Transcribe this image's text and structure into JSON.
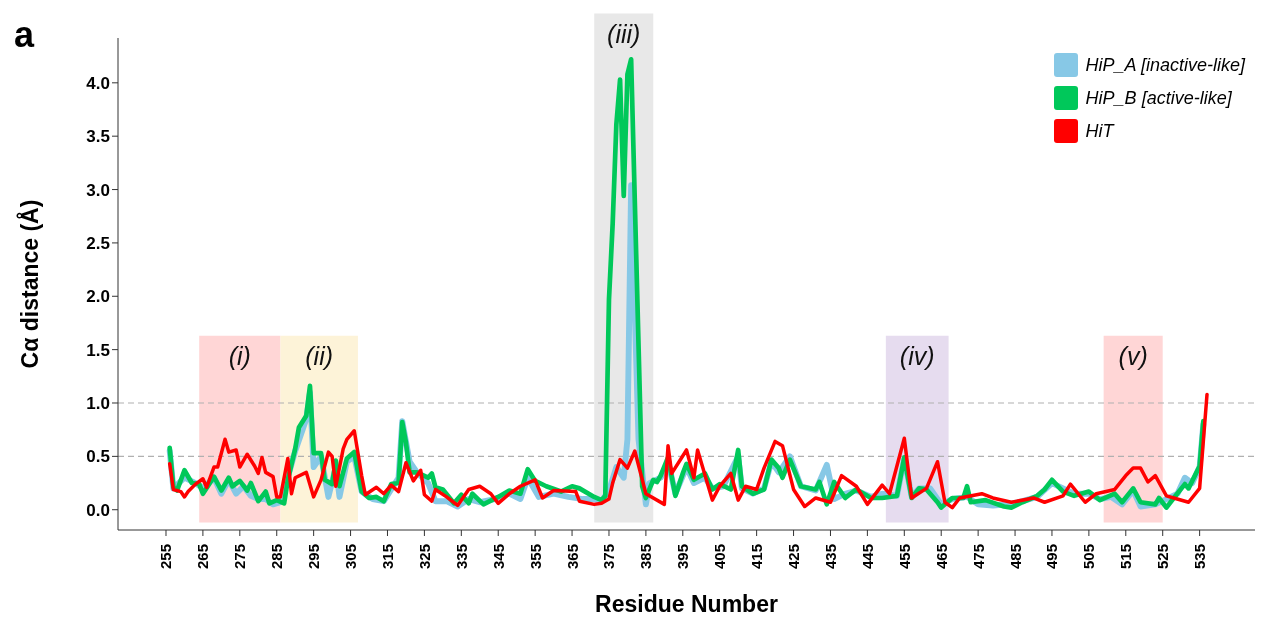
{
  "chart_data": {
    "type": "line",
    "xlabel": "Residue Number",
    "ylabel": "Cα distance (Å)",
    "annotations": [
      "a"
    ],
    "xlim": [
      242,
      550
    ],
    "xticks": [
      255,
      265,
      275,
      285,
      295,
      305,
      315,
      325,
      335,
      345,
      355,
      365,
      375,
      385,
      395,
      405,
      415,
      425,
      435,
      445,
      455,
      465,
      475,
      485,
      495,
      505,
      515,
      525,
      535
    ],
    "ylim": [
      -0.19,
      4.42
    ],
    "yticks": [
      {
        "value": 0,
        "label": "0.0"
      },
      {
        "value": 0.5,
        "label": "0.5"
      },
      {
        "value": 1,
        "label": "1.0"
      },
      {
        "value": 1.5,
        "label": "1.5"
      },
      {
        "value": 2,
        "label": "2.0"
      },
      {
        "value": 2.5,
        "label": "2.5"
      },
      {
        "value": 3,
        "label": "3.0"
      },
      {
        "value": 3.5,
        "label": "3.5"
      },
      {
        "value": 4,
        "label": "4.0"
      }
    ],
    "grid": false,
    "legend": "top right",
    "marker": "none",
    "line_style": "solid",
    "ref_lines": [
      {
        "axis": "y",
        "value": 0.5,
        "color": "#b0b0b0",
        "line_style": "dashed"
      },
      {
        "axis": "y",
        "value": 1,
        "color": "#b0b0b0",
        "line_style": "dashed"
      }
    ],
    "bands": [
      {
        "axis": "x",
        "from": 264,
        "to": 286,
        "label": "(i)",
        "color": "#ffd6d6"
      },
      {
        "axis": "x",
        "from": 286,
        "to": 307,
        "label": "(ii)",
        "color": "#fdf3d8"
      },
      {
        "axis": "x",
        "from": 371,
        "to": 387,
        "label": "(iii)",
        "color": "#e8e8e8"
      },
      {
        "axis": "x",
        "from": 450,
        "to": 467,
        "label": "(iv)",
        "color": "#e6dcef"
      },
      {
        "axis": "x",
        "from": 509,
        "to": 525,
        "label": "(v)",
        "color": "#ffd6d6"
      }
    ],
    "series": [
      {
        "name": "HiP_A [inactive-like]",
        "color": "#87c8e6",
        "x": [
          256,
          257,
          260,
          263,
          265,
          268,
          270,
          272,
          274,
          276,
          278,
          280,
          282,
          284,
          286,
          288,
          290,
          292,
          293,
          294,
          295,
          297,
          299,
          301,
          302,
          304,
          306,
          308,
          311,
          314,
          318,
          319,
          321,
          323,
          326,
          328,
          331,
          334,
          337,
          340,
          344,
          348,
          351,
          353,
          356,
          360,
          364,
          368,
          371,
          373,
          375,
          377,
          379,
          380,
          381,
          383,
          385,
          386,
          389,
          391,
          393,
          396,
          398,
          401,
          403,
          406,
          410,
          411,
          414,
          417,
          419,
          421,
          424,
          427,
          431,
          434,
          436,
          439,
          442,
          446,
          449,
          453,
          455,
          457,
          459,
          462,
          465,
          468,
          472,
          475,
          479,
          483,
          487,
          491,
          495,
          498,
          501,
          505,
          508,
          511,
          514,
          517,
          519,
          523,
          526,
          529,
          531,
          533,
          535,
          536
        ],
        "values": [
          0.55,
          0.2,
          0.3,
          0.25,
          0.2,
          0.3,
          0.15,
          0.28,
          0.15,
          0.22,
          0.13,
          0.1,
          0.1,
          0.05,
          0.07,
          0.3,
          0.55,
          0.75,
          0.85,
          1.1,
          0.4,
          0.5,
          0.12,
          0.4,
          0.12,
          0.45,
          0.5,
          0.17,
          0.1,
          0.08,
          0.3,
          0.83,
          0.45,
          0.35,
          0.25,
          0.08,
          0.08,
          0.03,
          0.1,
          0.07,
          0.1,
          0.15,
          0.1,
          0.3,
          0.12,
          0.15,
          0.12,
          0.1,
          0.1,
          0.08,
          0.18,
          0.4,
          0.3,
          0.66,
          3.04,
          0.66,
          0.05,
          0.25,
          0.3,
          0.45,
          0.15,
          0.4,
          0.25,
          0.3,
          0.2,
          0.22,
          0.5,
          0.2,
          0.15,
          0.2,
          0.45,
          0.35,
          0.5,
          0.22,
          0.18,
          0.42,
          0.1,
          0.15,
          0.18,
          0.12,
          0.15,
          0.13,
          0.48,
          0.12,
          0.2,
          0.2,
          0.05,
          0.1,
          0.12,
          0.05,
          0.04,
          0.05,
          0.08,
          0.12,
          0.25,
          0.2,
          0.15,
          0.15,
          0.1,
          0.12,
          0.05,
          0.18,
          0.03,
          0.05,
          0.1,
          0.15,
          0.3,
          0.25,
          0.4,
          0.8
        ]
      },
      {
        "name": "HiP_B [active-like]",
        "color": "#00c85a",
        "x": [
          256,
          257,
          258,
          260,
          262,
          264,
          265,
          268,
          270,
          272,
          273,
          275,
          277,
          278,
          280,
          282,
          283,
          285,
          287,
          288,
          290,
          291,
          293,
          294,
          295,
          297,
          298,
          300,
          301,
          302,
          304,
          306,
          308,
          310,
          312,
          314,
          316,
          318,
          319,
          320,
          321,
          323,
          326,
          327,
          328,
          330,
          333,
          335,
          337,
          338,
          341,
          345,
          348,
          351,
          353,
          355,
          358,
          362,
          365,
          367,
          371,
          373,
          374,
          375,
          376,
          377,
          378,
          379,
          380,
          381,
          384,
          385,
          387,
          388,
          389,
          391,
          393,
          395,
          396,
          398,
          401,
          403,
          405,
          408,
          410,
          411,
          414,
          417,
          419,
          421,
          422,
          424,
          427,
          431,
          432,
          434,
          436,
          439,
          442,
          446,
          449,
          453,
          455,
          457,
          459,
          461,
          464,
          465,
          468,
          471,
          472,
          473,
          477,
          482,
          484,
          487,
          491,
          493,
          495,
          498,
          501,
          505,
          508,
          512,
          514,
          517,
          519,
          523,
          524,
          526,
          528,
          531,
          532,
          535,
          536
        ],
        "values": [
          0.58,
          0.21,
          0.18,
          0.37,
          0.25,
          0.24,
          0.15,
          0.31,
          0.18,
          0.3,
          0.22,
          0.27,
          0.18,
          0.25,
          0.08,
          0.17,
          0.06,
          0.09,
          0.06,
          0.28,
          0.57,
          0.77,
          0.88,
          1.16,
          0.53,
          0.53,
          0.28,
          0.24,
          0.46,
          0.22,
          0.48,
          0.54,
          0.17,
          0.11,
          0.12,
          0.08,
          0.24,
          0.25,
          0.82,
          0.63,
          0.35,
          0.35,
          0.3,
          0.34,
          0.21,
          0.19,
          0.06,
          0.14,
          0.06,
          0.15,
          0.05,
          0.12,
          0.18,
          0.15,
          0.38,
          0.27,
          0.22,
          0.17,
          0.22,
          0.2,
          0.12,
          0.09,
          0.13,
          1.97,
          2.68,
          3.61,
          4.03,
          2.94,
          4.08,
          4.22,
          0.22,
          0.11,
          0.28,
          0.26,
          0.32,
          0.49,
          0.13,
          0.34,
          0.43,
          0.28,
          0.34,
          0.19,
          0.24,
          0.19,
          0.56,
          0.22,
          0.15,
          0.19,
          0.47,
          0.39,
          0.3,
          0.47,
          0.22,
          0.19,
          0.26,
          0.05,
          0.26,
          0.11,
          0.19,
          0.11,
          0.11,
          0.13,
          0.49,
          0.11,
          0.2,
          0.19,
          0.07,
          0.02,
          0.11,
          0.11,
          0.22,
          0.07,
          0.09,
          0.03,
          0.02,
          0.07,
          0.13,
          0.19,
          0.28,
          0.17,
          0.13,
          0.17,
          0.09,
          0.15,
          0.07,
          0.2,
          0.07,
          0.05,
          0.11,
          0.02,
          0.11,
          0.24,
          0.2,
          0.41,
          0.83
        ]
      },
      {
        "name": "HiT",
        "color": "#ff0000",
        "x": [
          256,
          257,
          259,
          260,
          261,
          263,
          265,
          266,
          268,
          269,
          271,
          272,
          274,
          275,
          277,
          279,
          280,
          281,
          282,
          284,
          285,
          286,
          288,
          289,
          290,
          293,
          295,
          297,
          299,
          300,
          301,
          303,
          304,
          306,
          308,
          309,
          312,
          314,
          316,
          318,
          320,
          322,
          324,
          325,
          327,
          328,
          331,
          334,
          337,
          340,
          343,
          345,
          348,
          351,
          355,
          357,
          360,
          366,
          367,
          371,
          373,
          375,
          376,
          378,
          380,
          382,
          385,
          390,
          391,
          392,
          396,
          398,
          399,
          403,
          405,
          408,
          410,
          412,
          415,
          417,
          420,
          422,
          425,
          428,
          431,
          435,
          438,
          442,
          445,
          449,
          451,
          455,
          457,
          461,
          464,
          466,
          468,
          470,
          476,
          479,
          484,
          490,
          493,
          498,
          500,
          504,
          507,
          512,
          515,
          517,
          519,
          521,
          523,
          526,
          528,
          532,
          535,
          537
        ],
        "values": [
          0.43,
          0.19,
          0.17,
          0.12,
          0.17,
          0.24,
          0.29,
          0.21,
          0.4,
          0.4,
          0.66,
          0.54,
          0.56,
          0.4,
          0.52,
          0.41,
          0.34,
          0.49,
          0.35,
          0.31,
          0.12,
          0.12,
          0.48,
          0.15,
          0.3,
          0.35,
          0.12,
          0.28,
          0.54,
          0.5,
          0.22,
          0.57,
          0.66,
          0.74,
          0.32,
          0.14,
          0.21,
          0.15,
          0.23,
          0.17,
          0.44,
          0.27,
          0.37,
          0.14,
          0.08,
          0.19,
          0.12,
          0.04,
          0.19,
          0.22,
          0.15,
          0.06,
          0.15,
          0.22,
          0.28,
          0.11,
          0.18,
          0.17,
          0.08,
          0.05,
          0.06,
          0.1,
          0.25,
          0.47,
          0.39,
          0.55,
          0.15,
          0.05,
          0.6,
          0.34,
          0.56,
          0.3,
          0.56,
          0.09,
          0.22,
          0.34,
          0.09,
          0.22,
          0.19,
          0.39,
          0.64,
          0.6,
          0.19,
          0.03,
          0.11,
          0.07,
          0.32,
          0.22,
          0.05,
          0.23,
          0.15,
          0.67,
          0.11,
          0.2,
          0.45,
          0.07,
          0.02,
          0.11,
          0.15,
          0.11,
          0.07,
          0.11,
          0.07,
          0.13,
          0.24,
          0.07,
          0.15,
          0.19,
          0.32,
          0.39,
          0.39,
          0.26,
          0.32,
          0.13,
          0.11,
          0.07,
          0.2,
          1.08
        ]
      }
    ]
  }
}
